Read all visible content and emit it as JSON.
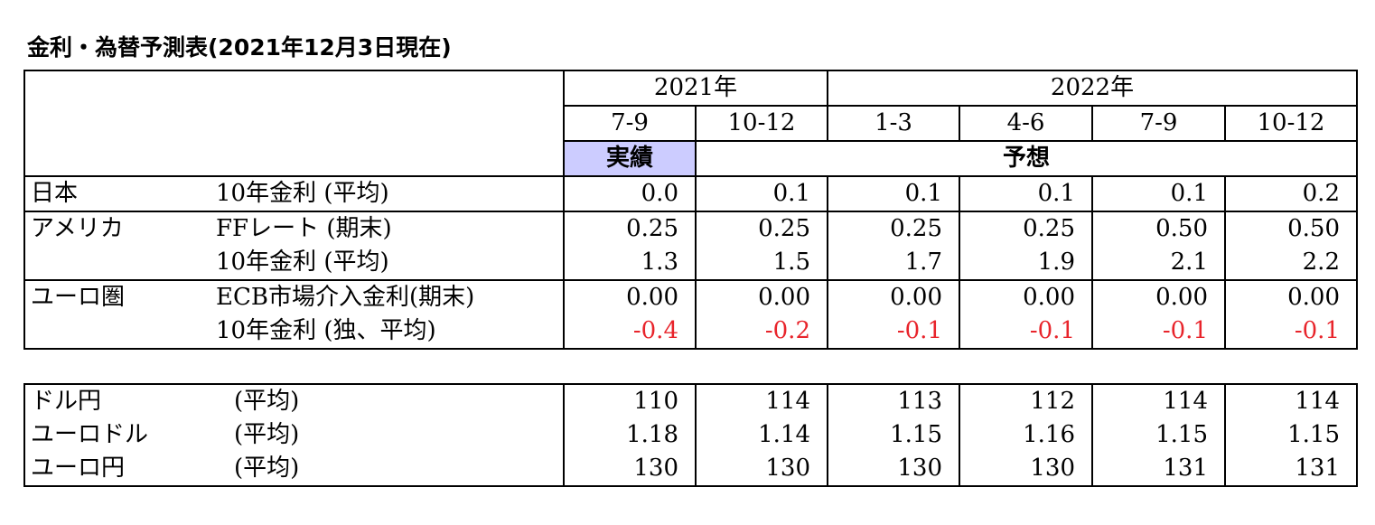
{
  "title": "金利・為替予測表(2021年12月3日現在)",
  "header": {
    "year_2021": "2021年",
    "year_2022": "2022年",
    "quarters": [
      "7-9",
      "10-12",
      "1-3",
      "4-6",
      "7-9",
      "10-12"
    ],
    "actual_label": "実績",
    "forecast_label": "予想"
  },
  "rates": [
    {
      "country": "日本",
      "label": "10年金利 (平均)",
      "values": [
        "0.0",
        "0.1",
        "0.1",
        "0.1",
        "0.1",
        "0.2"
      ]
    },
    {
      "country": "アメリカ",
      "label": "FFレート (期末)",
      "values": [
        "0.25",
        "0.25",
        "0.25",
        "0.25",
        "0.50",
        "0.50"
      ]
    },
    {
      "country": "",
      "label": "10年金利 (平均)",
      "values": [
        "1.3",
        "1.5",
        "1.7",
        "1.9",
        "2.1",
        "2.2"
      ]
    },
    {
      "country": "ユーロ圏",
      "label": "ECB市場介入金利(期末)",
      "values": [
        "0.00",
        "0.00",
        "0.00",
        "0.00",
        "0.00",
        "0.00"
      ]
    },
    {
      "country": "",
      "label": "10年金利 (独、平均)",
      "values": [
        "-0.4",
        "-0.2",
        "-0.1",
        "-0.1",
        "-0.1",
        "-0.1"
      ]
    }
  ],
  "fx": [
    {
      "pair": "ドル円",
      "label": "(平均)",
      "values": [
        "110",
        "114",
        "113",
        "112",
        "114",
        "114"
      ]
    },
    {
      "pair": "ユーロドル",
      "label": "(平均)",
      "values": [
        "1.18",
        "1.14",
        "1.15",
        "1.16",
        "1.15",
        "1.15"
      ]
    },
    {
      "pair": "ユーロ円",
      "label": "(平均)",
      "values": [
        "130",
        "130",
        "130",
        "130",
        "131",
        "131"
      ]
    }
  ],
  "colors": {
    "negative": "#e8242b",
    "actual_highlight": "#ccccff"
  }
}
